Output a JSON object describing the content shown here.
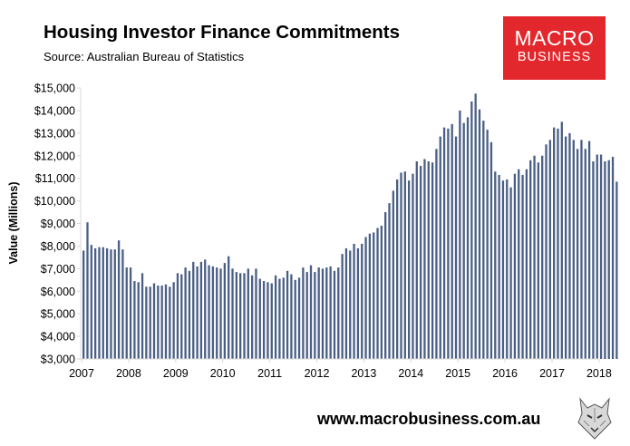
{
  "header": {
    "title": "Housing Investor Finance Commitments",
    "subtitle": "Source: Australian Bureau of Statistics"
  },
  "logo": {
    "line1": "MACRO",
    "line2": "BUSINESS"
  },
  "footer": {
    "url": "www.macrobusiness.com.au"
  },
  "colors": {
    "bar": "#4a5f84",
    "logo_bg": "#e3282d",
    "axis": "#d9d9d9"
  },
  "chart_data": {
    "type": "bar",
    "title": "Housing Investor Finance Commitments",
    "ylabel": "Value (Millions)",
    "xlabel": "",
    "ylim": [
      3000,
      15000
    ],
    "yticks": [
      3000,
      4000,
      5000,
      6000,
      7000,
      8000,
      9000,
      10000,
      11000,
      12000,
      13000,
      14000,
      15000
    ],
    "ytick_labels": [
      "$3,000",
      "$4,000",
      "$5,000",
      "$6,000",
      "$7,000",
      "$8,000",
      "$9,000",
      "$10,000",
      "$11,000",
      "$12,000",
      "$13,000",
      "$14,000",
      "$15,000"
    ],
    "xtick_labels": [
      "2007",
      "2008",
      "2009",
      "2010",
      "2011",
      "2012",
      "2013",
      "2014",
      "2015",
      "2016",
      "2017",
      "2018"
    ],
    "grid": false,
    "x_start": "2007-01",
    "x_frequency": "monthly",
    "values": [
      7800,
      9050,
      8050,
      7900,
      7950,
      7950,
      7900,
      7850,
      7850,
      8250,
      7850,
      7050,
      7050,
      6450,
      6400,
      6800,
      6200,
      6200,
      6350,
      6250,
      6250,
      6300,
      6200,
      6400,
      6800,
      6750,
      7050,
      6900,
      7300,
      7100,
      7300,
      7400,
      7150,
      7100,
      7050,
      7000,
      7250,
      7550,
      7000,
      6850,
      6800,
      6800,
      7000,
      6700,
      7000,
      6550,
      6450,
      6400,
      6350,
      6700,
      6550,
      6600,
      6900,
      6750,
      6500,
      6600,
      7050,
      6850,
      7150,
      6850,
      7050,
      7000,
      7050,
      7100,
      6900,
      7050,
      7650,
      7900,
      7800,
      8100,
      7900,
      8100,
      8400,
      8550,
      8600,
      8800,
      8900,
      9500,
      9900,
      10450,
      10950,
      11250,
      11300,
      10900,
      11200,
      11750,
      11550,
      11850,
      11750,
      11700,
      12300,
      12850,
      13250,
      13200,
      13400,
      12850,
      14000,
      13450,
      13700,
      14400,
      14750,
      14050,
      13550,
      13150,
      12600,
      11300,
      11150,
      10900,
      10950,
      10600,
      11200,
      11400,
      11150,
      11400,
      11800,
      12000,
      11700,
      12000,
      12500,
      12700,
      13250,
      13200,
      13500,
      12850,
      13000,
      12700,
      12300,
      12700,
      12300,
      12650,
      11750,
      12050,
      12050,
      11750,
      11800,
      11950,
      10850
    ]
  }
}
